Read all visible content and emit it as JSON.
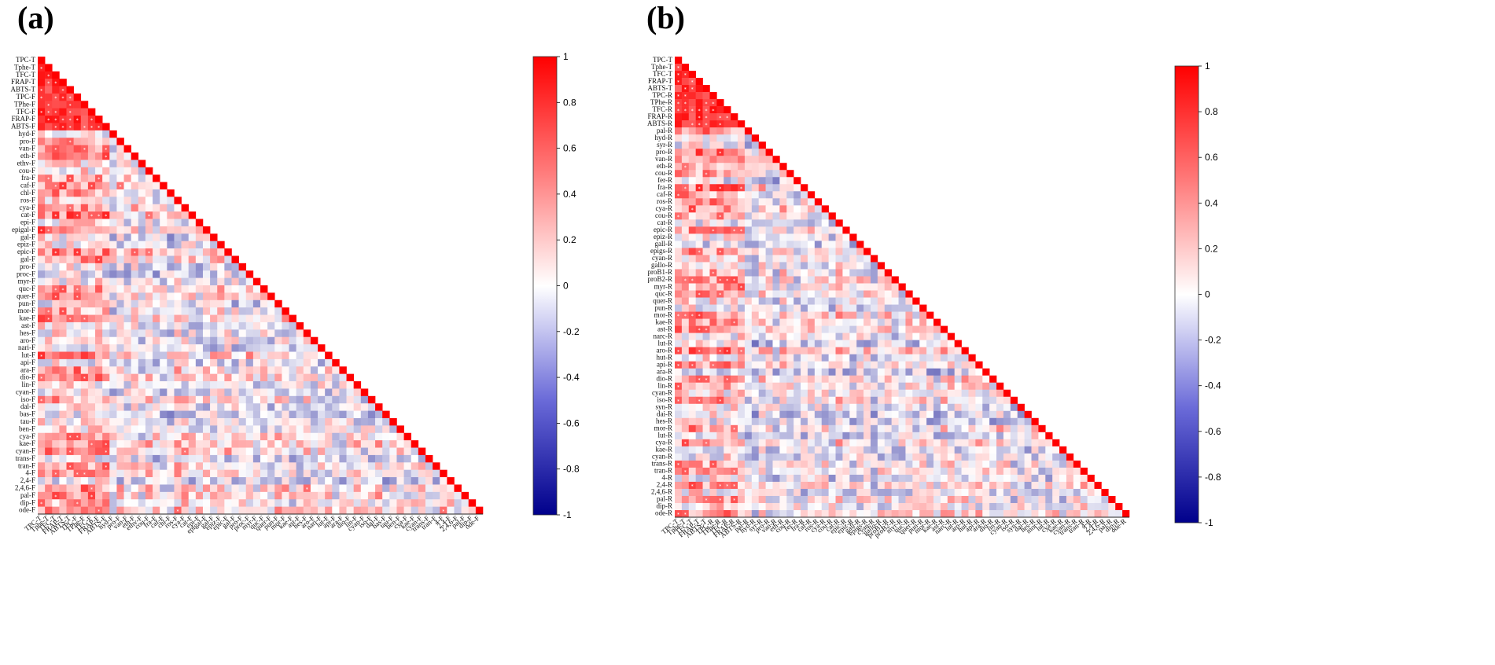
{
  "chart_data": [
    {
      "type": "heatmap",
      "panel_label": "(a)",
      "shape": "lower-triangle correlation matrix",
      "variables": [
        "TPC-T",
        "Tphe-T",
        "TFC-T",
        "FRAP-T",
        "ABTS-T",
        "TPC-F",
        "TPhe-F",
        "TFC-F",
        "FRAP-F",
        "ABTS-F",
        "hyd-F",
        "pro-F",
        "van-F",
        "eth-F",
        "ethv-F",
        "cou-F",
        "fra-F",
        "caf-F",
        "chl-F",
        "ros-F",
        "cya-F",
        "cat-F",
        "epi-F",
        "epigal-F",
        "gal-F",
        "epiz-F",
        "epic-F",
        "gal-F",
        "pro-F",
        "proc-F",
        "myr-F",
        "quc-F",
        "quer-F",
        "pun-F",
        "mor-F",
        "kae-F",
        "ast-F",
        "hes-F",
        "aro-F",
        "nari-F",
        "lut-F",
        "api-F",
        "ara-F",
        "dio-F",
        "lin-F",
        "cyan-F",
        "iso-F",
        "dal-F",
        "bas-F",
        "tau-F",
        "ben-F",
        "cya-F",
        "kae-F",
        "cyan-F",
        "trans-F",
        "tran-F",
        "4-F",
        "2,4-F",
        "2,4,6-F",
        "pal-F",
        "dip-F",
        "ode-F"
      ],
      "value_range": [
        -1,
        1
      ],
      "colorbar": {
        "ticks": [
          "1",
          "0.8",
          "0.6",
          "0.4",
          "0.2",
          "0",
          "-0.2",
          "-0.4",
          "-0.6",
          "-0.8",
          "-1"
        ],
        "min_color": "#00008b",
        "mid_color": "#ffffff",
        "max_color": "#ff0000"
      },
      "seed": 7
    },
    {
      "type": "heatmap",
      "panel_label": "(b)",
      "shape": "lower-triangle correlation matrix",
      "variables": [
        "TPC-T",
        "Tphe-T",
        "TFC-T",
        "FRAP-T",
        "ABTS-T",
        "TPC-R",
        "TPhe-R",
        "TFC-R",
        "FRAP-R",
        "ABTS-R",
        "pal-R",
        "hyd-R",
        "syr-R",
        "pro-R",
        "van-R",
        "eth-R",
        "cou-R",
        "fer-R",
        "fra-R",
        "caf-R",
        "ros-R",
        "cya-R",
        "cou-R",
        "cat-R",
        "epic-R",
        "epiz-R",
        "gall-R",
        "epigs-R",
        "cyan-R",
        "gallo-R",
        "proB1-R",
        "proB2-R",
        "myr-R",
        "quc-R",
        "quer-R",
        "pun-R",
        "mor-R",
        "kae-R",
        "ast-R",
        "narc-R",
        "lut-R",
        "aro-R",
        "hut-R",
        "api-R",
        "ara-R",
        "dio-R",
        "lin-R",
        "cyan-R",
        "iso-R",
        "syn-R",
        "dai-R",
        "hes-R",
        "mor-R",
        "lut-R",
        "cya-R",
        "kae-R",
        "cyan-R",
        "trans-R",
        "tran-R",
        "4-R",
        "2,4-R",
        "2,4,6-R",
        "pal-R",
        "dip-R",
        "ode-R"
      ],
      "value_range": [
        -1,
        1
      ],
      "colorbar": {
        "ticks": [
          "1",
          "0.8",
          "0.6",
          "0.4",
          "0.2",
          "0",
          "-0.2",
          "-0.4",
          "-0.6",
          "-0.8",
          "-1"
        ],
        "min_color": "#00008b",
        "mid_color": "#ffffff",
        "max_color": "#ff0000"
      },
      "seed": 19
    }
  ]
}
